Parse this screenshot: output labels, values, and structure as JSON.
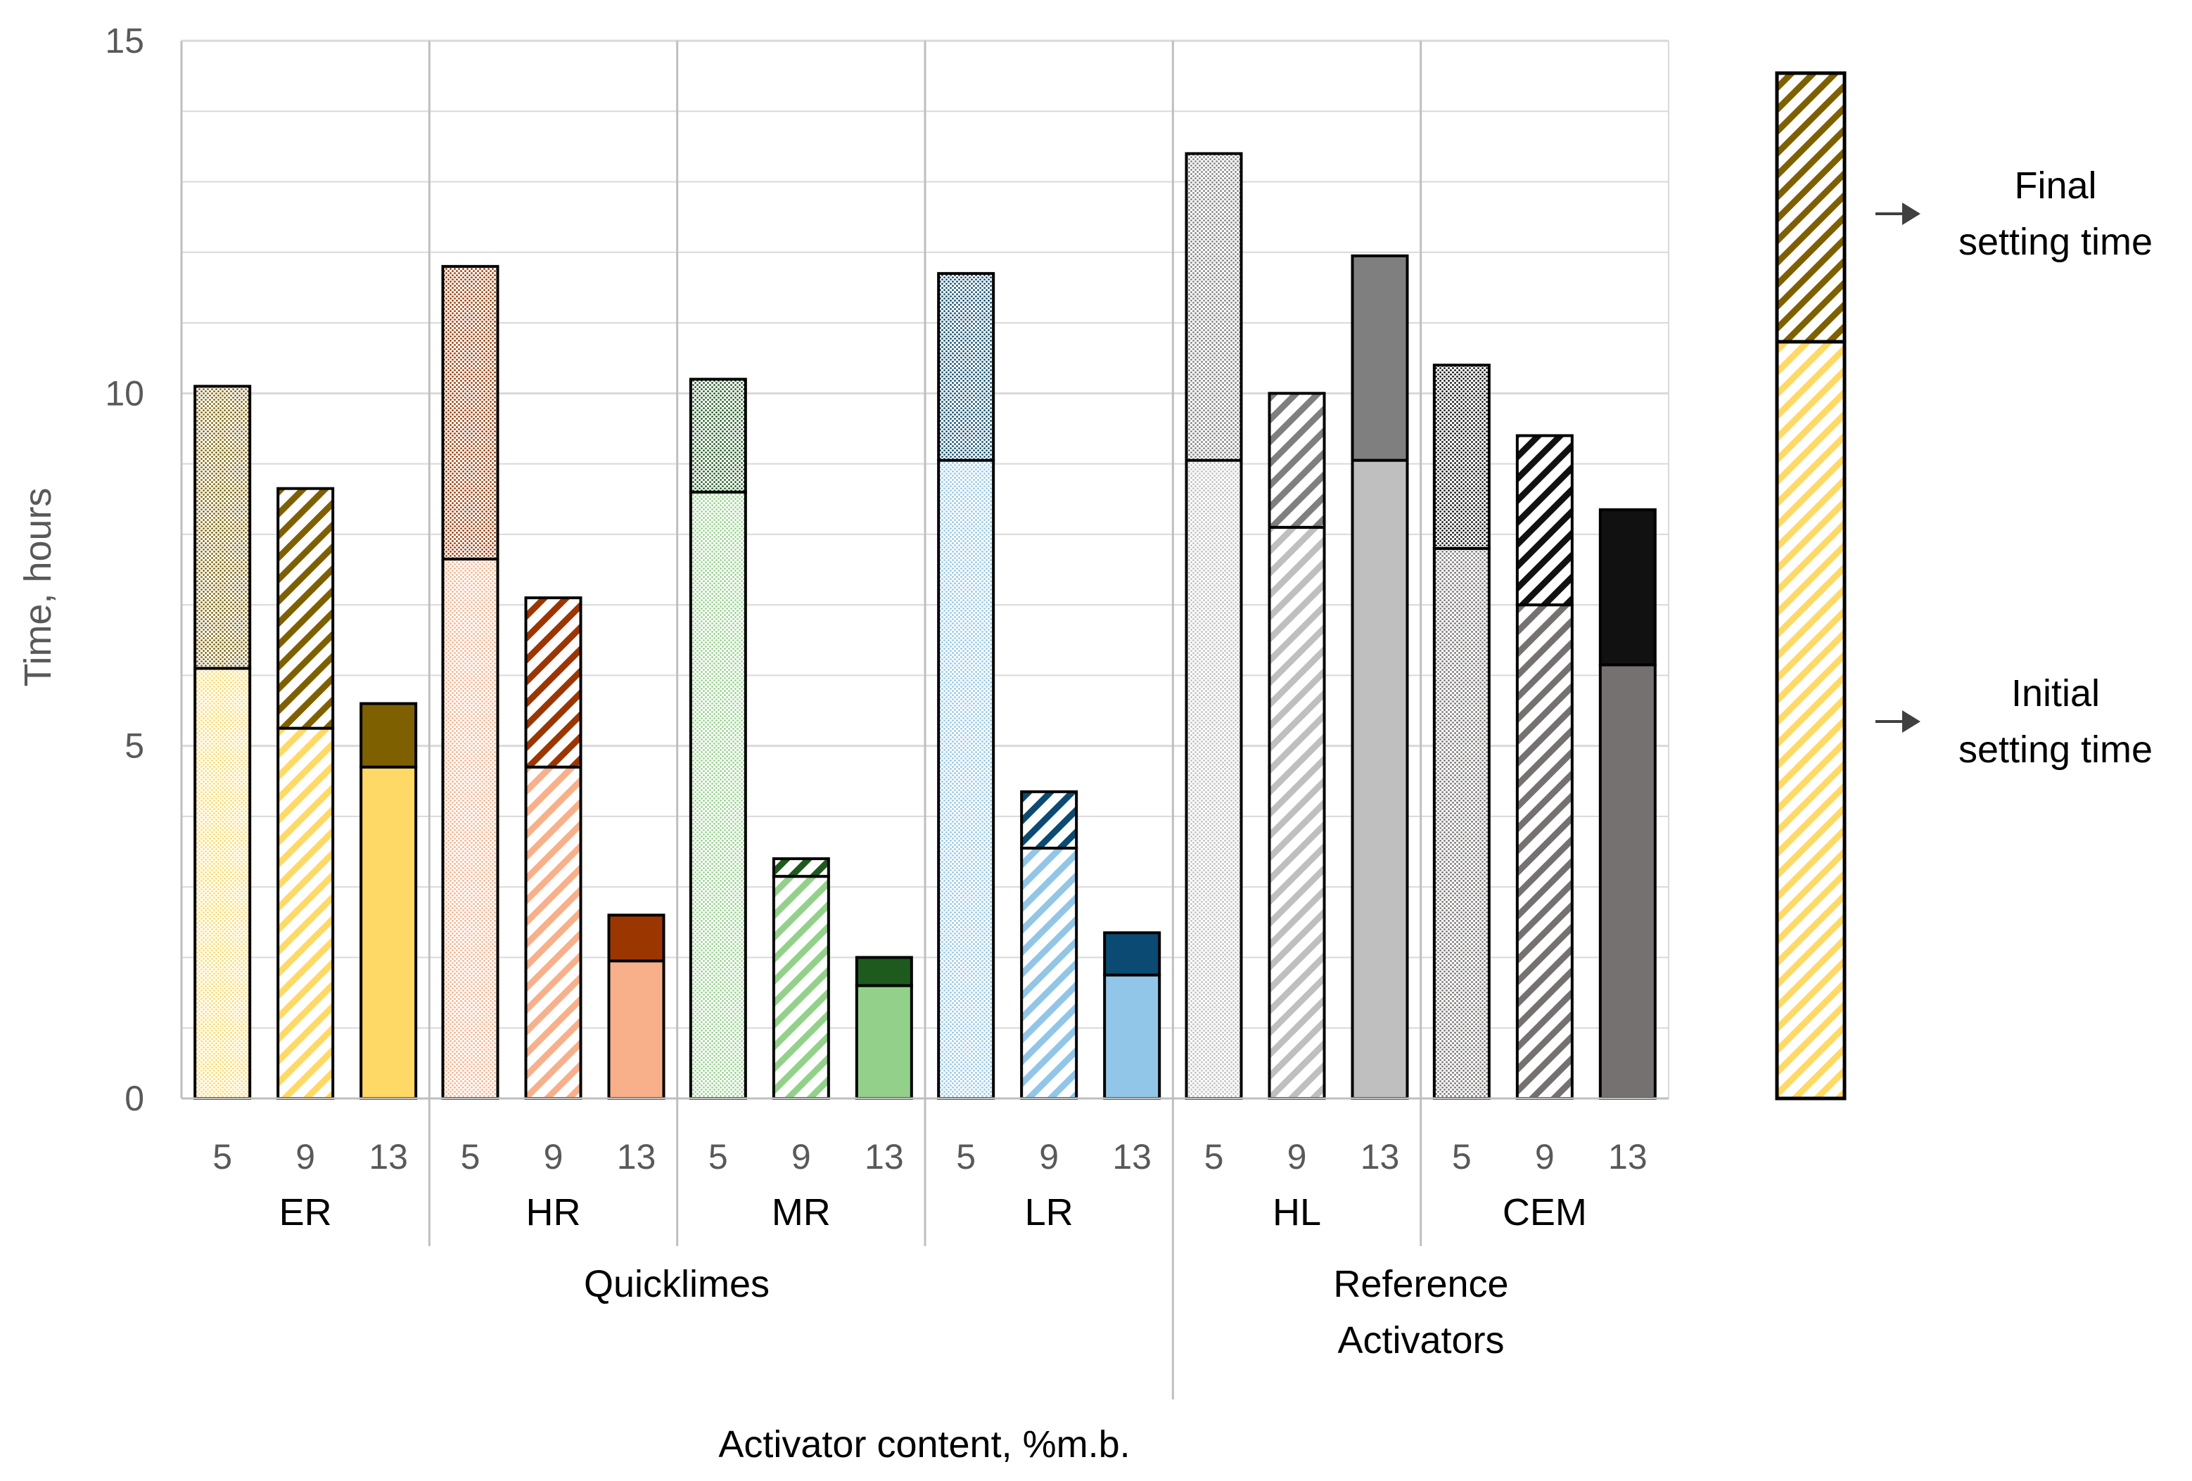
{
  "chart_data": {
    "type": "bar",
    "stacked": true,
    "ylabel": "Time, hours",
    "xlabel": "Activator content, %m.b.",
    "ylim": [
      0,
      15
    ],
    "yticks": [
      0,
      5,
      10,
      15
    ],
    "grid": true,
    "groups": [
      {
        "name": "ER",
        "category": "Quicklimes",
        "bars": [
          {
            "x": "5",
            "initial": 6.1,
            "final": 10.1,
            "fill": "dot"
          },
          {
            "x": "9",
            "initial": 5.25,
            "final": 8.65,
            "fill": "hatch"
          },
          {
            "x": "13",
            "initial": 4.7,
            "final": 5.6,
            "fill": "solid"
          }
        ]
      },
      {
        "name": "HR",
        "category": "Quicklimes",
        "bars": [
          {
            "x": "5",
            "initial": 7.65,
            "final": 11.8,
            "fill": "dot"
          },
          {
            "x": "9",
            "initial": 4.7,
            "final": 7.1,
            "fill": "hatch"
          },
          {
            "x": "13",
            "initial": 1.95,
            "final": 2.6,
            "fill": "solid"
          }
        ]
      },
      {
        "name": "MR",
        "category": "Quicklimes",
        "bars": [
          {
            "x": "5",
            "initial": 8.6,
            "final": 10.2,
            "fill": "dot"
          },
          {
            "x": "9",
            "initial": 3.15,
            "final": 3.4,
            "fill": "hatch"
          },
          {
            "x": "13",
            "initial": 1.6,
            "final": 2.0,
            "fill": "solid"
          }
        ]
      },
      {
        "name": "LR",
        "category": "Quicklimes",
        "bars": [
          {
            "x": "5",
            "initial": 9.05,
            "final": 11.7,
            "fill": "dot"
          },
          {
            "x": "9",
            "initial": 3.55,
            "final": 4.35,
            "fill": "hatch"
          },
          {
            "x": "13",
            "initial": 1.75,
            "final": 2.35,
            "fill": "solid"
          }
        ]
      },
      {
        "name": "HL",
        "category": "Reference Activators",
        "bars": [
          {
            "x": "5",
            "initial": 9.05,
            "final": 13.4,
            "fill": "dot"
          },
          {
            "x": "9",
            "initial": 8.1,
            "final": 10.0,
            "fill": "hatch"
          },
          {
            "x": "13",
            "initial": 9.05,
            "final": 11.95,
            "fill": "solid"
          }
        ]
      },
      {
        "name": "CEM",
        "category": "Reference Activators",
        "bars": [
          {
            "x": "5",
            "initial": 7.8,
            "final": 10.4,
            "fill": "dot"
          },
          {
            "x": "9",
            "initial": 7.0,
            "final": 9.4,
            "fill": "hatch"
          },
          {
            "x": "13",
            "initial": 6.15,
            "final": 8.35,
            "fill": "solid"
          }
        ]
      }
    ],
    "categories": [
      "Quicklimes",
      "Reference Activators"
    ],
    "legend": {
      "position": "right",
      "final_label": "Final setting time",
      "initial_label": "Initial setting time",
      "final_lines": [
        "Final",
        "setting time"
      ],
      "initial_lines": [
        "Initial",
        "setting time"
      ]
    }
  },
  "colors": {
    "ER": {
      "initial": "#ffd966",
      "final": "#7f6000"
    },
    "HR": {
      "initial": "#f8b08a",
      "final": "#9c3600"
    },
    "MR": {
      "initial": "#93d18a",
      "final": "#1e5a1e"
    },
    "LR": {
      "initial": "#92c6e8",
      "final": "#0b4a72"
    },
    "HL": {
      "initial": "#bfbfbf",
      "final": "#7f7f7f"
    },
    "CEM": {
      "initial": "#767171",
      "final": "#111111"
    },
    "grid": "#d9d9d9",
    "axis": "#bfbfbf",
    "legend_initial": "#ffd966",
    "legend_final": "#7f6000",
    "arrow": "#404040"
  }
}
